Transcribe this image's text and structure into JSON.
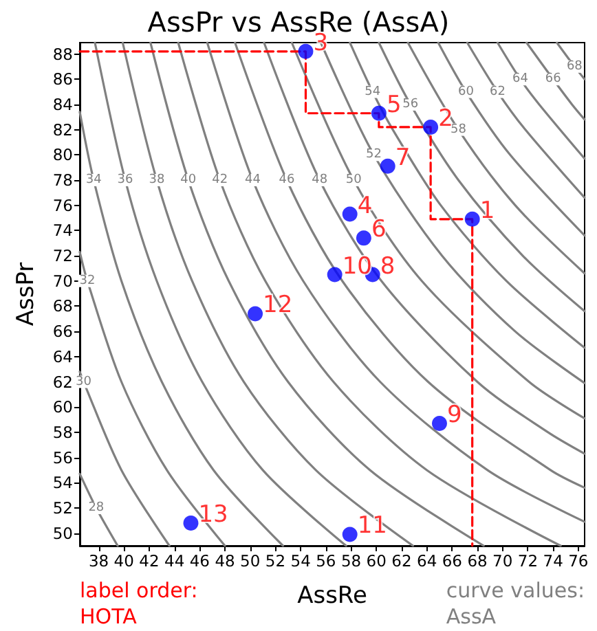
{
  "chart_data": {
    "type": "scatter",
    "title": "AssPr vs AssRe (AssA)",
    "xlabel": "AssRe",
    "ylabel": "AssPr",
    "xlim": [
      36.5,
      76.5
    ],
    "ylim": [
      49.0,
      88.9
    ],
    "xticks": [
      38,
      40,
      42,
      44,
      46,
      48,
      50,
      52,
      54,
      56,
      58,
      60,
      62,
      64,
      66,
      68,
      70,
      72,
      74,
      76
    ],
    "yticks": [
      50,
      52,
      54,
      56,
      58,
      60,
      62,
      64,
      66,
      68,
      70,
      72,
      74,
      76,
      78,
      80,
      82,
      84,
      86,
      88
    ],
    "grid": false,
    "annotations": [
      "label order:\nHOTA",
      "curve values:\nAssA"
    ],
    "series": [
      {
        "type": "line",
        "name": "28",
        "color": "#808080",
        "marker": "none",
        "x": [
          39.5,
          37.8,
          36.5
        ],
        "values": [
          49.0,
          52,
          54.7
        ]
      },
      {
        "type": "line",
        "name": "30",
        "color": "#808080",
        "marker": "none",
        "x": [
          43.6,
          39.8,
          36.8,
          36.5
        ],
        "values": [
          49.0,
          55,
          62,
          62.8
        ]
      },
      {
        "type": "line",
        "name": "32",
        "color": "#808080",
        "marker": "none",
        "x": [
          48.0,
          43.4,
          39.8,
          37.1,
          36.5
        ],
        "values": [
          49.0,
          55,
          62,
          70,
          72.3
        ]
      },
      {
        "type": "line",
        "name": "34",
        "color": "#808080",
        "marker": "none",
        "x": [
          52.6,
          47.1,
          43.0,
          39.8,
          37.6,
          36.5
        ],
        "values": [
          49.0,
          55,
          62,
          70,
          78,
          83.4
        ]
      },
      {
        "type": "line",
        "name": "36",
        "color": "#808080",
        "marker": "none",
        "x": [
          57.6,
          51.0,
          46.2,
          42.6,
          40.1,
          37.7
        ],
        "values": [
          49.0,
          55,
          62,
          70,
          78,
          88.9
        ]
      },
      {
        "type": "line",
        "name": "38",
        "color": "#808080",
        "marker": "none",
        "x": [
          62.9,
          55.2,
          49.5,
          45.4,
          42.6,
          39.9
        ],
        "values": [
          49.0,
          55,
          62,
          70,
          78,
          88.9
        ]
      },
      {
        "type": "line",
        "name": "40",
        "color": "#808080",
        "marker": "none",
        "x": [
          68.5,
          59.5,
          53.0,
          48.3,
          45.1,
          42.1
        ],
        "values": [
          49.0,
          55,
          62,
          70,
          78,
          88.9
        ]
      },
      {
        "type": "line",
        "name": "42",
        "color": "#808080",
        "marker": "none",
        "x": [
          74.6,
          64.0,
          56.6,
          51.2,
          47.6,
          44.3
        ],
        "values": [
          49.0,
          55,
          62,
          70,
          78,
          88.9
        ]
      },
      {
        "type": "line",
        "name": "44",
        "color": "#808080",
        "marker": "none",
        "x": [
          76.5,
          68.8,
          60.3,
          54.2,
          50.2,
          46.6
        ],
        "values": [
          50.9,
          55,
          62,
          70,
          78,
          88.9
        ]
      },
      {
        "type": "line",
        "name": "46",
        "color": "#808080",
        "marker": "none",
        "x": [
          76.5,
          73.8,
          64.1,
          57.3,
          52.9,
          48.8
        ],
        "values": [
          53.6,
          55,
          62,
          70,
          78,
          88.9
        ]
      },
      {
        "type": "line",
        "name": "48",
        "color": "#808080",
        "marker": "none",
        "x": [
          76.5,
          73.6,
          68.0,
          60.4,
          55.5,
          51.1
        ],
        "values": [
          56.3,
          58,
          62,
          70,
          78,
          88.9
        ]
      },
      {
        "type": "line",
        "name": "50",
        "color": "#808080",
        "marker": "none",
        "x": [
          76.5,
          72.1,
          63.6,
          58.2,
          53.3
        ],
        "values": [
          59.1,
          62,
          70,
          78,
          88.9
        ]
      },
      {
        "type": "line",
        "name": "52",
        "color": "#808080",
        "marker": "none",
        "x": [
          76.5,
          71.0,
          65.2,
          59.8,
          55.6
        ],
        "values": [
          61.9,
          66,
          72,
          80,
          88.9
        ]
      },
      {
        "type": "line",
        "name": "54",
        "color": "#808080",
        "marker": "none",
        "x": [
          76.5,
          70.3,
          65.1,
          61.3,
          59.7,
          57.9
        ],
        "values": [
          64.7,
          70,
          76,
          82,
          85,
          88.9
        ]
      },
      {
        "type": "line",
        "name": "56",
        "color": "#808080",
        "marker": "none",
        "x": [
          76.5,
          71.6,
          66.5,
          62.7,
          60.2
        ],
        "values": [
          67.6,
          72,
          78,
          84,
          88.9
        ]
      },
      {
        "type": "line",
        "name": "58",
        "color": "#808080",
        "marker": "none",
        "x": [
          76.5,
          71.0,
          66.5,
          62.5
        ],
        "values": [
          70.6,
          76,
          82,
          88.9
        ]
      },
      {
        "type": "line",
        "name": "60",
        "color": "#808080",
        "marker": "none",
        "x": [
          76.5,
          70.6,
          67.1,
          64.9
        ],
        "values": [
          73.6,
          80,
          85,
          88.9
        ]
      },
      {
        "type": "line",
        "name": "62",
        "color": "#808080",
        "marker": "none",
        "x": [
          76.5,
          71.8,
          69.6,
          67.2
        ],
        "values": [
          76.6,
          82,
          85,
          88.9
        ]
      },
      {
        "type": "line",
        "name": "64",
        "color": "#808080",
        "marker": "none",
        "x": [
          76.5,
          72.9,
          71.4,
          69.6
        ],
        "values": [
          79.7,
          84,
          86,
          88.9
        ]
      },
      {
        "type": "line",
        "name": "66",
        "color": "#808080",
        "marker": "none",
        "x": [
          76.5,
          75.5,
          74.0,
          71.9
        ],
        "values": [
          82.8,
          84,
          86,
          88.9
        ]
      },
      {
        "type": "line",
        "name": "68",
        "color": "#808080",
        "marker": "none",
        "x": [
          76.5,
          75.7,
          74.3
        ],
        "values": [
          86.0,
          87,
          88.9
        ]
      },
      {
        "type": "line",
        "color": "#ff0000",
        "marker": "none",
        "line_style": "dashed",
        "x": [
          36.5,
          54.4,
          54.4,
          60.2,
          60.2,
          64.3,
          64.3,
          67.6,
          67.6
        ],
        "values": [
          88.2,
          88.2,
          83.3,
          83.3,
          82.2,
          82.2,
          74.9,
          74.9,
          49.0
        ]
      },
      {
        "name": "1",
        "color": "#0000ff",
        "marker": "circle",
        "x": [
          67.6
        ],
        "values": [
          74.9
        ]
      },
      {
        "name": "2",
        "color": "#0000ff",
        "marker": "circle",
        "x": [
          64.3
        ],
        "values": [
          82.2
        ]
      },
      {
        "name": "3",
        "color": "#0000ff",
        "marker": "circle",
        "x": [
          54.4
        ],
        "values": [
          88.2
        ]
      },
      {
        "name": "4",
        "color": "#0000ff",
        "marker": "circle",
        "x": [
          57.9
        ],
        "values": [
          75.3
        ]
      },
      {
        "name": "5",
        "color": "#0000ff",
        "marker": "circle",
        "x": [
          60.2
        ],
        "values": [
          83.3
        ]
      },
      {
        "name": "6",
        "color": "#0000ff",
        "marker": "circle",
        "x": [
          59.0
        ],
        "values": [
          73.4
        ]
      },
      {
        "name": "7",
        "color": "#0000ff",
        "marker": "circle",
        "x": [
          60.9
        ],
        "values": [
          79.1
        ]
      },
      {
        "name": "8",
        "color": "#0000ff",
        "marker": "circle",
        "x": [
          59.7
        ],
        "values": [
          70.5
        ]
      },
      {
        "name": "9",
        "color": "#0000ff",
        "marker": "circle",
        "x": [
          65.0
        ],
        "values": [
          58.7
        ]
      },
      {
        "name": "10",
        "color": "#0000ff",
        "marker": "circle",
        "x": [
          56.7
        ],
        "values": [
          70.5
        ]
      },
      {
        "name": "11",
        "color": "#0000ff",
        "marker": "circle",
        "x": [
          57.9
        ],
        "values": [
          49.9
        ]
      },
      {
        "name": "12",
        "color": "#0000ff",
        "marker": "circle",
        "x": [
          50.4
        ],
        "values": [
          67.4
        ]
      },
      {
        "name": "13",
        "color": "#0000ff",
        "marker": "circle",
        "x": [
          45.3
        ],
        "values": [
          50.8
        ]
      }
    ]
  }
}
